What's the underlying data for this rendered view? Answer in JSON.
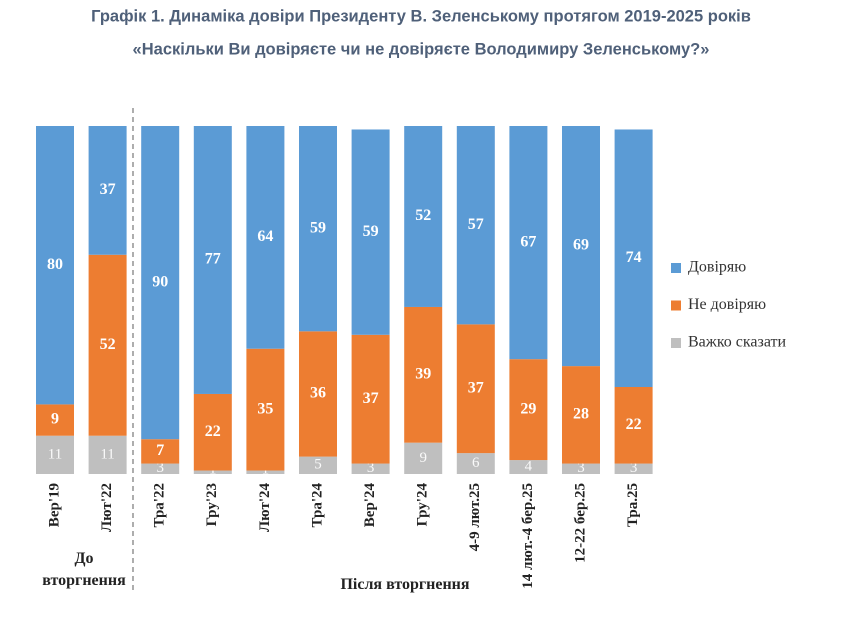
{
  "chart_data": {
    "type": "bar",
    "stacked": true,
    "title": "Графік 1. Динаміка довіри Президенту В. Зеленському протягом 2019-2025 років",
    "subtitle": "«Наскільки Ви довіряєте чи не довіряєте Володимиру Зеленському?»",
    "categories": [
      "Вер'19",
      "Лют'22",
      "Тра'22",
      "Гру'23",
      "Лют'24",
      "Тра'24",
      "Вер'24",
      "Гру'24",
      "4-9 лют.25",
      "14 лют.-4 бер.25",
      "12-22 бер.25",
      "Тра.25"
    ],
    "series": [
      {
        "name": "Довіряю",
        "color": "#5b9bd5",
        "values": [
          80,
          37,
          90,
          77,
          64,
          59,
          59,
          52,
          57,
          67,
          69,
          74
        ]
      },
      {
        "name": "Не довіряю",
        "color": "#ed7d31",
        "values": [
          9,
          52,
          7,
          22,
          35,
          36,
          37,
          39,
          37,
          29,
          28,
          22
        ]
      },
      {
        "name": "Важко сказати",
        "color": "#bfbfbf",
        "values": [
          11,
          11,
          3,
          1,
          1,
          5,
          3,
          9,
          6,
          4,
          3,
          3
        ]
      }
    ],
    "ylim": [
      0,
      100
    ],
    "groups": [
      "До вторгнення",
      "Після вторгнення"
    ]
  }
}
